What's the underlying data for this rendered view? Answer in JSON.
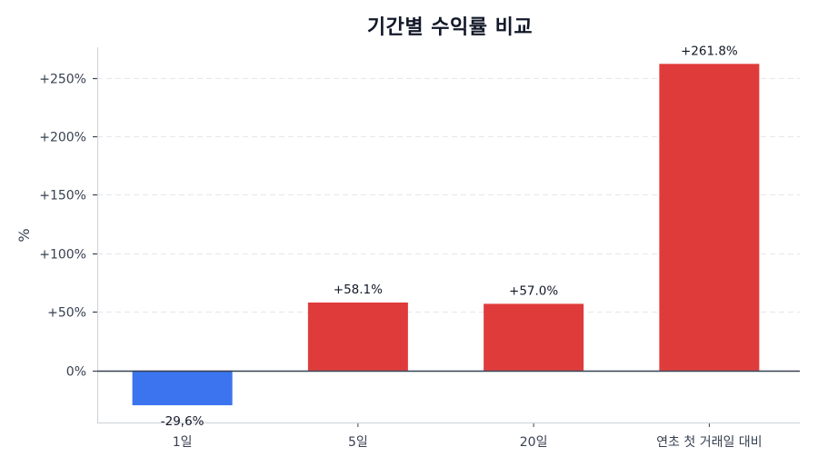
{
  "chart_data": {
    "type": "bar",
    "title": "기간별 수익률 비교",
    "xlabel": "",
    "ylabel": "%",
    "categories": [
      "1일",
      "5일",
      "20일",
      "연초 첫 거래일 대비"
    ],
    "values": [
      -29.6,
      58.1,
      57.0,
      261.8
    ],
    "value_labels": [
      "-29.6%",
      "+58.1%",
      "+57.0%",
      "+261.8%"
    ],
    "bar_colors": [
      "#3b74ee",
      "#e03b3b",
      "#e03b3b",
      "#e03b3b"
    ],
    "positive_color": "#e03b3b",
    "negative_color": "#3b74ee",
    "yticks": [
      0,
      50,
      100,
      150,
      200,
      250
    ],
    "ytick_labels": [
      "0%",
      "+50%",
      "+100%",
      "+150%",
      "+200%",
      "+250%"
    ],
    "ylim": [
      -44.3,
      276
    ],
    "grid": "horizontal dashed",
    "zero_line": true,
    "legend": null
  }
}
